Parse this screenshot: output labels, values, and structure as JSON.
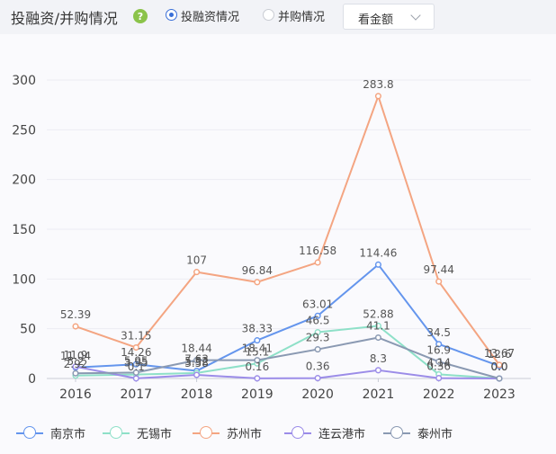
{
  "header": {
    "title": "投融资/并购情况",
    "help_icon": "?",
    "radio_options": [
      {
        "label": "投融资情况",
        "selected": true
      },
      {
        "label": "并购情况",
        "selected": false
      }
    ],
    "select": {
      "value": "看金额"
    }
  },
  "colors": {
    "南京市": "#6495ed",
    "无锡市": "#8ee0c8",
    "苏州市": "#f4a582",
    "连云港市": "#9b8ce8",
    "泰州市": "#8a99b2"
  },
  "chart_data": {
    "type": "line",
    "x": [
      "2016",
      "2017",
      "2018",
      "2019",
      "2020",
      "2021",
      "2022",
      "2023"
    ],
    "ylim": [
      0,
      300
    ],
    "yticks": [
      0,
      50,
      100,
      150,
      200,
      250,
      300
    ],
    "grid": true,
    "legend_position": "bottom",
    "series": [
      {
        "name": "南京市",
        "values": [
          11.04,
          14.26,
          7.63,
          38.33,
          63.01,
          114.46,
          34.5,
          12.6
        ]
      },
      {
        "name": "无锡市",
        "values": [
          2.92,
          3.95,
          5.52,
          15.1,
          46.5,
          52.88,
          4.14,
          0.0
        ]
      },
      {
        "name": "苏州市",
        "values": [
          52.39,
          31.15,
          107,
          96.84,
          116.58,
          283.8,
          97.44,
          13.67
        ]
      },
      {
        "name": "连云港市",
        "values": [
          11.9,
          0.1,
          3.58,
          0.16,
          0.36,
          8.3,
          0.36,
          0.0
        ]
      },
      {
        "name": "泰州市",
        "values": [
          5.2,
          5.95,
          18.44,
          18.41,
          29.3,
          41.1,
          16.9,
          0.0
        ]
      }
    ],
    "labels": [
      {
        "series": 0,
        "texts": [
          "11.04",
          "14.26",
          "7.63",
          "38.33",
          "63.01",
          "114.46",
          "34.5",
          "12.6"
        ]
      },
      {
        "series": 1,
        "texts": [
          "2.92",
          "3.95",
          "5.52",
          "15.1",
          "46.5",
          "52.88",
          "4.14",
          "0.0"
        ]
      },
      {
        "series": 2,
        "texts": [
          "52.39",
          "31.15",
          "107",
          "96.84",
          "116.58",
          "283.8",
          "97.44",
          "13.67"
        ]
      },
      {
        "series": 3,
        "texts": [
          "11.9",
          "0.1",
          "3.58",
          "0.16",
          "0.36",
          "8.3",
          "0.36",
          "0.0"
        ]
      },
      {
        "series": 4,
        "texts": [
          "5.2",
          "5.95",
          "18.44",
          "18.41",
          "29.3",
          "41.1",
          "16.9",
          "0.0"
        ]
      }
    ]
  }
}
